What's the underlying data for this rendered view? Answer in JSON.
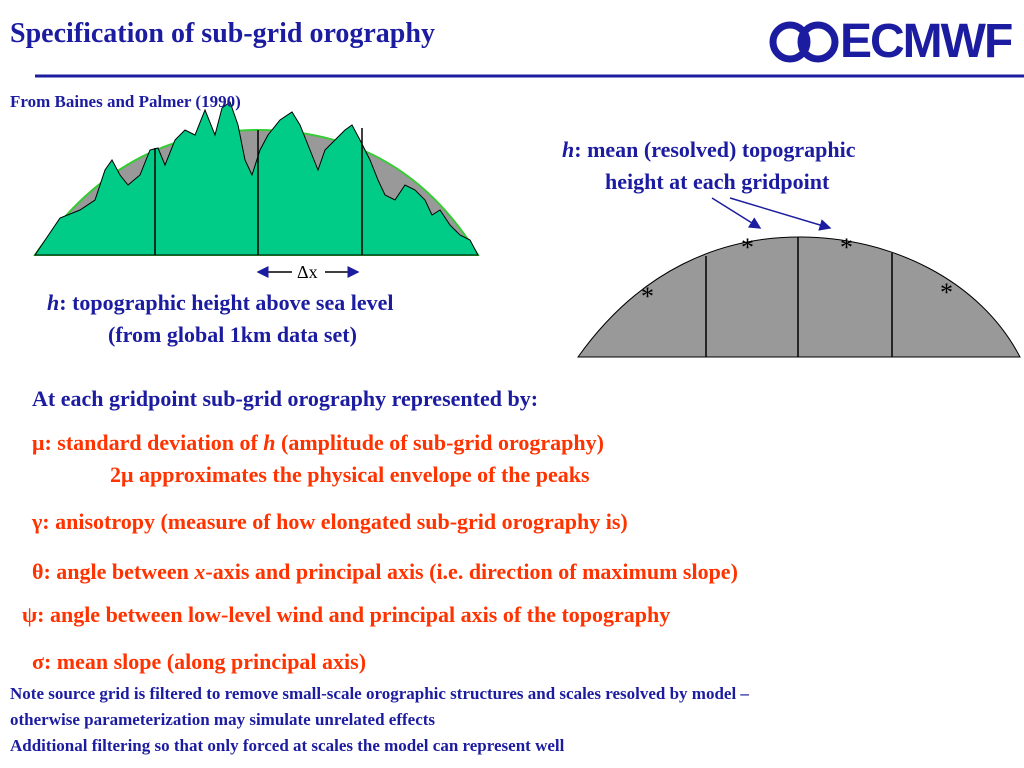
{
  "header": {
    "title": "Specification of sub-grid orography",
    "logo": "ECMWF"
  },
  "source": "From Baines and Palmer (1990)",
  "left_figure": {
    "dx_label": "Δx",
    "caption": {
      "symbol": "h",
      "line1": ": topographic height above sea level",
      "line2": "(from global 1km data set)"
    }
  },
  "right_figure": {
    "caption": {
      "symbol": "h",
      "line1": ": mean (resolved) topographic",
      "line2": "height at each gridpoint"
    },
    "markers": [
      "*",
      "*",
      "*",
      "*"
    ]
  },
  "intro": "At each gridpoint sub-grid orography represented by:",
  "params": [
    {
      "before": "μ: standard deviation of ",
      "italic": "h",
      "after": " (amplitude of sub-grid orography)",
      "note": "2μ approximates the physical envelope of the peaks"
    },
    {
      "text": "γ: anisotropy (measure of how elongated sub-grid orography is)"
    },
    {
      "before": "θ: angle between ",
      "italic": "x",
      "after": "-axis and principal axis (i.e. direction of maximum slope)"
    },
    {
      "text": "ψ: angle between low-level wind and principal axis of the topography"
    },
    {
      "text": "σ: mean slope (along principal axis)"
    }
  ],
  "notes": [
    "Note source grid is filtered to remove small-scale orographic structures and scales resolved by model –",
    "otherwise parameterization may simulate unrelated effects",
    "Additional filtering so that only forced at scales the model can represent well"
  ]
}
